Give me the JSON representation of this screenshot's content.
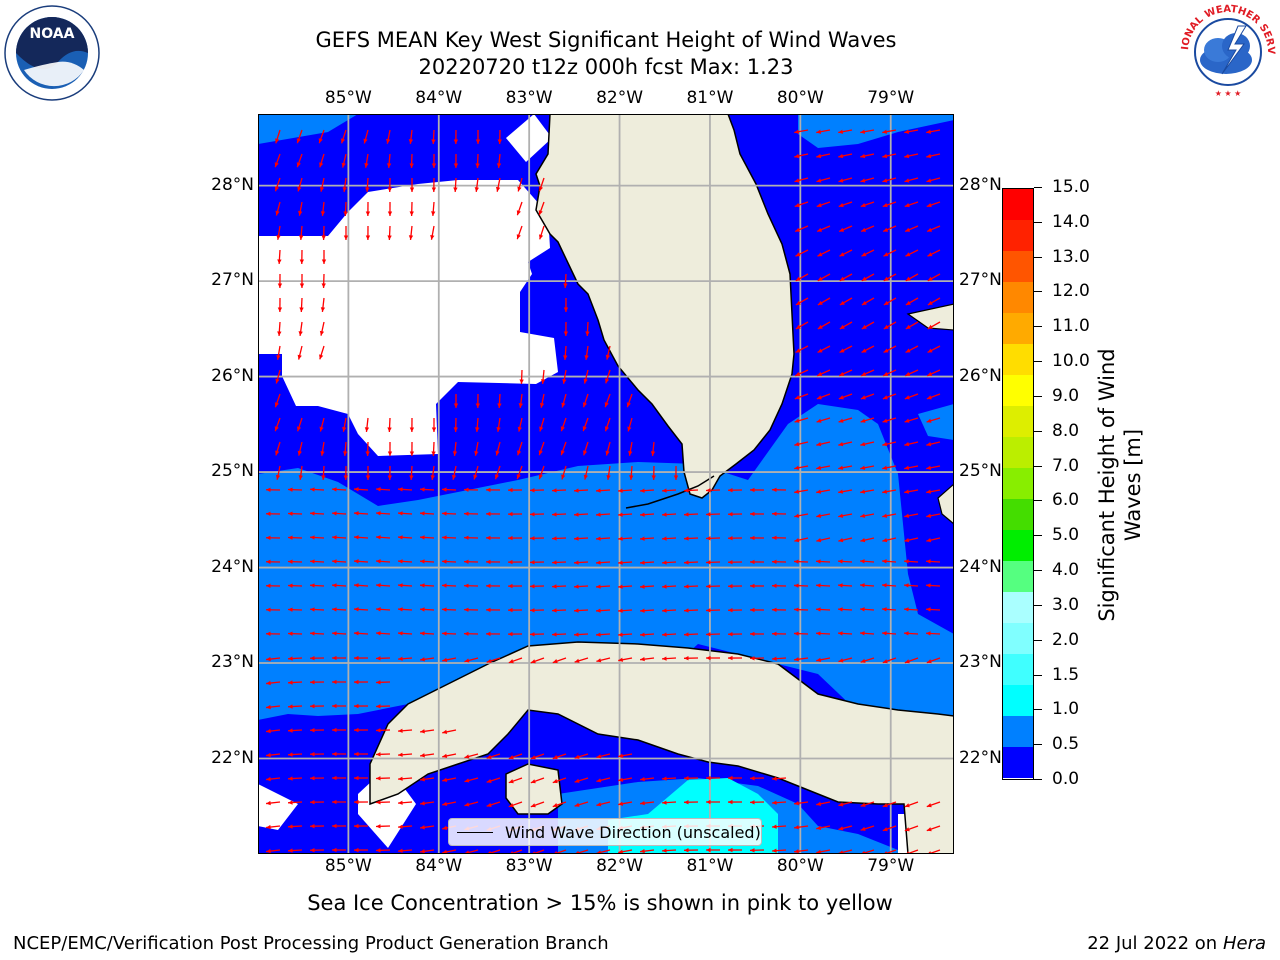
{
  "header": {
    "title_line1": "GEFS MEAN Key West Significant Height of Wind Waves",
    "title_line2": "20220720 t12z 000h fcst   Max: 1.23"
  },
  "logos": {
    "noaa_text": "NOAA",
    "noaa_ring": "NATIONAL OCEANIC AND ATMOSPHERIC ADMINISTRATION · U.S. DEPARTMENT OF COMMERCE",
    "nws_ring": "NATIONAL WEATHER SERVICE"
  },
  "map": {
    "lon_ticks": [
      "85°W",
      "84°W",
      "83°W",
      "82°W",
      "81°W",
      "80°W",
      "79°W"
    ],
    "lat_ticks": [
      "28°N",
      "27°N",
      "26°N",
      "25°N",
      "24°N",
      "23°N",
      "22°N"
    ],
    "lon_range": [
      -86.0,
      -78.3
    ],
    "lat_range": [
      21.0,
      28.75
    ],
    "colors": {
      "land": "#eeeddc",
      "band_0_0.5": "#0000ff",
      "band_0.5_1.0": "#0080ff",
      "band_1.0_1.5": "#00ffff",
      "no_data": "#ffffff",
      "arrow": "#ff0000",
      "grid": "#b0b0b0"
    },
    "legend_label": "Wind Wave Direction (unscaled)"
  },
  "colorbar": {
    "label": "Significant Height of Wind Waves [m]",
    "ticks": [
      "0.0",
      "0.5",
      "1.0",
      "1.5",
      "2.0",
      "3.0",
      "4.0",
      "5.0",
      "6.0",
      "7.0",
      "8.0",
      "9.0",
      "10.0",
      "11.0",
      "12.0",
      "13.0",
      "14.0",
      "15.0"
    ],
    "colors": [
      "#0000ff",
      "#0080ff",
      "#00ffff",
      "#40ffff",
      "#80ffff",
      "#aaffff",
      "#55ff80",
      "#00ee00",
      "#44dd00",
      "#88ee00",
      "#bbee00",
      "#ddee00",
      "#ffff00",
      "#ffdd00",
      "#ffaa00",
      "#ff8800",
      "#ff5500",
      "#ff2200",
      "#ff0000"
    ]
  },
  "note": "Sea Ice Concentration > 15% is shown in pink to yellow",
  "footer": {
    "left": "NCEP/EMC/Verification Post Processing Product Generation Branch",
    "right_date": "22 Jul 2022 on ",
    "right_host": "Hera"
  }
}
